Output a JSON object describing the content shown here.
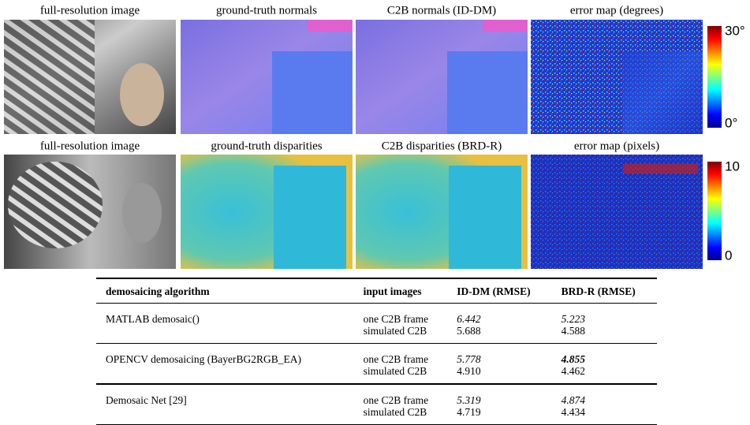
{
  "figure": {
    "rows": [
      {
        "captions": [
          "full-resolution image",
          "ground-truth normals",
          "C2B normals (ID-DM)",
          "error map (degrees)"
        ],
        "colorbar": {
          "max": "30°",
          "min": "0°"
        }
      },
      {
        "captions": [
          "full-resolution image",
          "ground-truth disparities",
          "C2B disparities (BRD-R)",
          "error map (pixels)"
        ],
        "colorbar": {
          "max": "10",
          "min": "0"
        }
      }
    ]
  },
  "table": {
    "header": [
      "demosaicing algorithm",
      "input images",
      "ID-DM (RMSE)",
      "BRD-R (RMSE)"
    ],
    "groups": [
      {
        "algorithm": "MATLAB demosaic()",
        "rows": [
          [
            "one C2B frame",
            "6.442",
            "5.223"
          ],
          [
            "simulated C2B",
            "5.688",
            "4.588"
          ]
        ]
      },
      {
        "algorithm": "OPENCV demosaicing (BayerBG2RGB_EA)",
        "rows": [
          [
            "one C2B frame",
            "5.778",
            "4.855"
          ],
          [
            "simulated C2B",
            "4.910",
            "4.462"
          ]
        ]
      },
      {
        "algorithm": "Demosaic Net [29]",
        "rows": [
          [
            "one C2B frame",
            "5.319",
            "4.874"
          ],
          [
            "simulated C2B",
            "4.719",
            "4.434"
          ]
        ]
      }
    ]
  }
}
